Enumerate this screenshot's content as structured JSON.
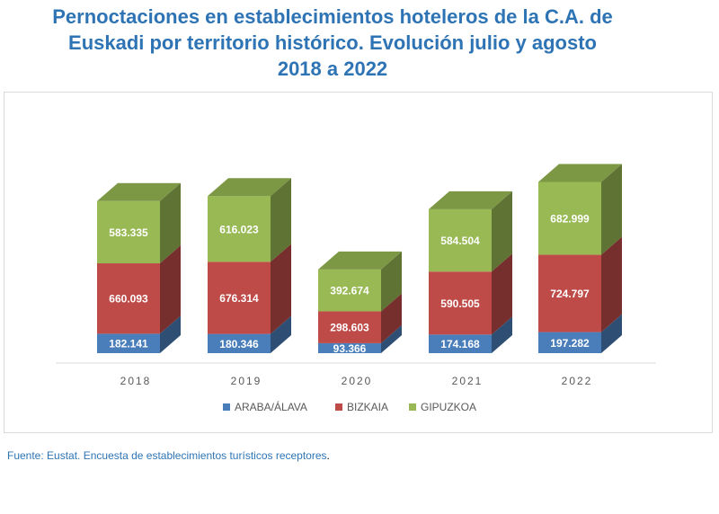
{
  "title_lines": [
    "Pernoctaciones en establecimientos hoteleros de la C.A. de",
    "Euskadi por territorio histórico. Evolución julio y agosto",
    "2018 a 2022"
  ],
  "source_text": "Fuente: Eustat. Encuesta de establecimientos turísticos receptores",
  "source_end": ".",
  "colors": {
    "araba": "#4a7ebb",
    "bizkaia": "#be4b48",
    "gipuzkoa": "#98b954",
    "title": "#2e74b5",
    "axis_label": "#595959"
  },
  "chart_data": {
    "type": "bar",
    "stacked": true,
    "three_d": true,
    "title": "Pernoctaciones en establecimientos hoteleros de la C.A. de Euskadi por territorio histórico. Evolución julio y agosto 2018 a 2022",
    "categories": [
      "2018",
      "2019",
      "2020",
      "2021",
      "2022"
    ],
    "series": [
      {
        "name": "ARABA/ÁLAVA",
        "values": [
          182141,
          180346,
          93366,
          174168,
          197282
        ],
        "labels": [
          "182.141",
          "180.346",
          "93.366",
          "174.168",
          "197.282"
        ]
      },
      {
        "name": "BIZKAIA",
        "values": [
          660093,
          676314,
          298603,
          590505,
          724797
        ],
        "labels": [
          "660.093",
          "676.314",
          "298.603",
          "590.505",
          "724.797"
        ]
      },
      {
        "name": "GIPUZKOA",
        "values": [
          583335,
          616023,
          392674,
          584504,
          682999
        ],
        "labels": [
          "583.335",
          "616.023",
          "392.674",
          "584.504",
          "682.999"
        ]
      }
    ],
    "xlabel": "",
    "ylabel": "",
    "grid": false,
    "legend": "bottom"
  }
}
